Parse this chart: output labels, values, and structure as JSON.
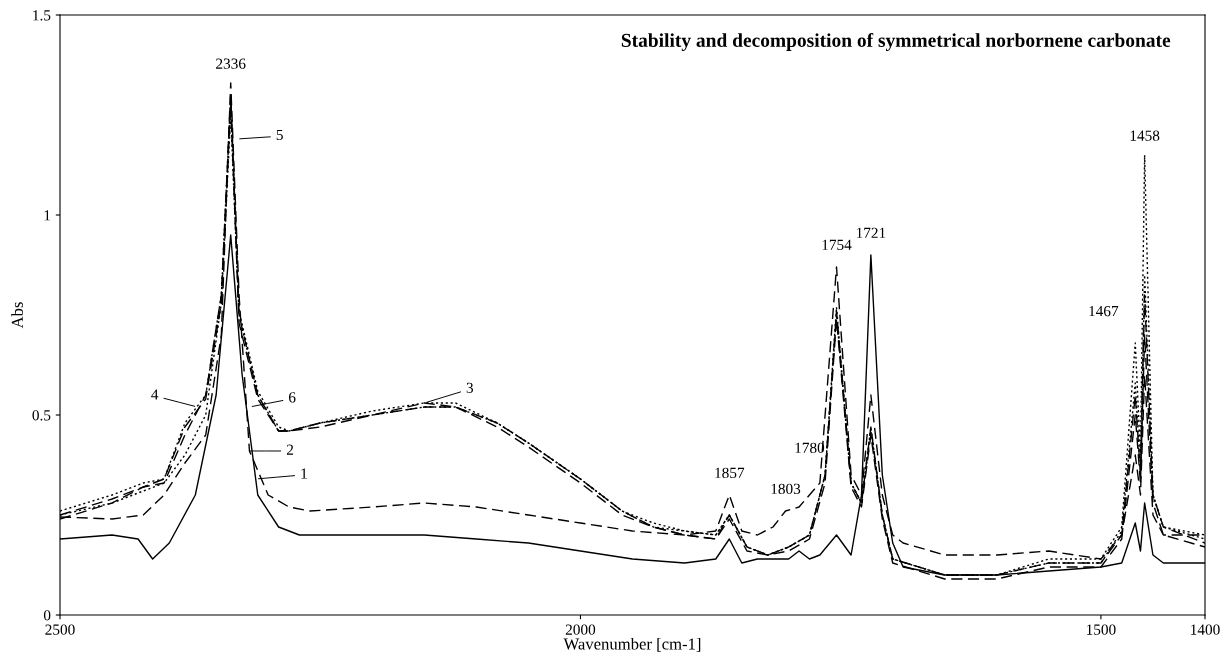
{
  "chart_data": {
    "type": "line",
    "title": "Stability and decomposition of symmetrical norbornene carbonate",
    "xlabel": "Wavenumber [cm-1]",
    "ylabel": "Abs",
    "xlim": [
      2500,
      1400
    ],
    "ylim": [
      0,
      1.5
    ],
    "xticks": [
      2500,
      2000,
      1500,
      1400
    ],
    "yticks": [
      0,
      0.5,
      1,
      1.5
    ],
    "grid": false,
    "legend": false,
    "marker": "none",
    "series": [
      {
        "color": "#000000",
        "line_style": "solid",
        "x": [
          2500,
          2450,
          2425,
          2411,
          2395,
          2370,
          2350,
          2336,
          2325,
          2310,
          2290,
          2270,
          2250,
          2200,
          2150,
          2100,
          2050,
          2000,
          1950,
          1900,
          1870,
          1857,
          1845,
          1830,
          1815,
          1800,
          1790,
          1780,
          1770,
          1754,
          1740,
          1730,
          1721,
          1710,
          1700,
          1690,
          1650,
          1600,
          1550,
          1500,
          1480,
          1467,
          1462,
          1458,
          1450,
          1440,
          1400
        ],
        "values": [
          0.19,
          0.2,
          0.19,
          0.14,
          0.18,
          0.3,
          0.55,
          0.95,
          0.6,
          0.3,
          0.22,
          0.2,
          0.2,
          0.2,
          0.2,
          0.19,
          0.18,
          0.16,
          0.14,
          0.13,
          0.14,
          0.19,
          0.13,
          0.14,
          0.14,
          0.14,
          0.16,
          0.14,
          0.15,
          0.2,
          0.15,
          0.3,
          0.9,
          0.35,
          0.18,
          0.12,
          0.1,
          0.1,
          0.11,
          0.12,
          0.13,
          0.23,
          0.16,
          0.28,
          0.15,
          0.13,
          0.13
        ]
      },
      {
        "color": "#000000",
        "line_style": "dashed",
        "x": [
          2500,
          2450,
          2420,
          2400,
          2380,
          2360,
          2345,
          2336,
          2328,
          2318,
          2300,
          2280,
          2260,
          2200,
          2150,
          2100,
          2050,
          2000,
          1950,
          1900,
          1870,
          1857,
          1845,
          1830,
          1815,
          1803,
          1790,
          1780,
          1770,
          1754,
          1740,
          1730,
          1721,
          1710,
          1700,
          1690,
          1650,
          1600,
          1550,
          1500,
          1480,
          1467,
          1462,
          1458,
          1450,
          1440,
          1400
        ],
        "values": [
          0.245,
          0.24,
          0.25,
          0.3,
          0.38,
          0.45,
          0.7,
          1.33,
          0.8,
          0.41,
          0.3,
          0.27,
          0.26,
          0.27,
          0.28,
          0.27,
          0.25,
          0.23,
          0.21,
          0.2,
          0.21,
          0.3,
          0.21,
          0.2,
          0.22,
          0.26,
          0.27,
          0.3,
          0.33,
          0.87,
          0.35,
          0.3,
          0.55,
          0.3,
          0.2,
          0.18,
          0.15,
          0.15,
          0.16,
          0.14,
          0.2,
          0.4,
          0.3,
          0.6,
          0.25,
          0.2,
          0.2
        ]
      },
      {
        "color": "#000000",
        "line_style": "dashed",
        "x": [
          2500,
          2450,
          2420,
          2400,
          2380,
          2360,
          2345,
          2336,
          2328,
          2310,
          2290,
          2280,
          2250,
          2200,
          2150,
          2120,
          2080,
          2050,
          2000,
          1960,
          1930,
          1900,
          1870,
          1857,
          1840,
          1820,
          1800,
          1780,
          1765,
          1754,
          1740,
          1730,
          1721,
          1710,
          1700,
          1650,
          1600,
          1550,
          1500,
          1480,
          1467,
          1462,
          1458,
          1450,
          1440,
          1400
        ],
        "values": [
          0.25,
          0.29,
          0.32,
          0.33,
          0.45,
          0.55,
          0.8,
          1.3,
          0.75,
          0.55,
          0.46,
          0.46,
          0.48,
          0.5,
          0.53,
          0.52,
          0.48,
          0.43,
          0.34,
          0.26,
          0.22,
          0.2,
          0.19,
          0.25,
          0.17,
          0.15,
          0.17,
          0.2,
          0.35,
          0.76,
          0.33,
          0.28,
          0.47,
          0.25,
          0.14,
          0.1,
          0.1,
          0.13,
          0.13,
          0.2,
          0.55,
          0.35,
          0.8,
          0.3,
          0.22,
          0.18
        ]
      },
      {
        "color": "#000000",
        "line_style": "dashed",
        "x": [
          2500,
          2450,
          2420,
          2400,
          2380,
          2360,
          2345,
          2336,
          2328,
          2310,
          2290,
          2280,
          2250,
          2200,
          2150,
          2120,
          2080,
          2050,
          2000,
          1960,
          1930,
          1900,
          1870,
          1857,
          1840,
          1820,
          1800,
          1780,
          1765,
          1754,
          1740,
          1730,
          1721,
          1710,
          1700,
          1650,
          1600,
          1550,
          1500,
          1480,
          1467,
          1462,
          1458,
          1450,
          1440,
          1400
        ],
        "values": [
          0.24,
          0.28,
          0.32,
          0.34,
          0.47,
          0.54,
          0.78,
          1.28,
          0.73,
          0.54,
          0.46,
          0.46,
          0.47,
          0.5,
          0.52,
          0.52,
          0.47,
          0.42,
          0.33,
          0.25,
          0.22,
          0.2,
          0.19,
          0.24,
          0.16,
          0.15,
          0.16,
          0.19,
          0.33,
          0.74,
          0.32,
          0.27,
          0.45,
          0.24,
          0.13,
          0.09,
          0.09,
          0.12,
          0.12,
          0.19,
          0.5,
          0.33,
          0.7,
          0.28,
          0.2,
          0.17
        ]
      },
      {
        "color": "#000000",
        "line_style": "dotted",
        "x": [
          2500,
          2450,
          2420,
          2400,
          2380,
          2360,
          2345,
          2336,
          2328,
          2310,
          2290,
          2280,
          2250,
          2200,
          2150,
          2120,
          2080,
          2050,
          2000,
          1960,
          1930,
          1900,
          1870,
          1857,
          1840,
          1820,
          1800,
          1780,
          1765,
          1754,
          1740,
          1730,
          1721,
          1710,
          1700,
          1650,
          1600,
          1550,
          1500,
          1480,
          1467,
          1462,
          1458,
          1450,
          1440,
          1400
        ],
        "values": [
          0.25,
          0.28,
          0.31,
          0.33,
          0.4,
          0.5,
          0.78,
          1.25,
          0.75,
          0.55,
          0.46,
          0.46,
          0.48,
          0.5,
          0.52,
          0.52,
          0.48,
          0.43,
          0.34,
          0.26,
          0.22,
          0.21,
          0.2,
          0.25,
          0.17,
          0.15,
          0.17,
          0.2,
          0.35,
          0.75,
          0.33,
          0.28,
          0.46,
          0.25,
          0.14,
          0.1,
          0.1,
          0.14,
          0.14,
          0.22,
          0.68,
          0.4,
          1.15,
          0.3,
          0.22,
          0.19
        ]
      },
      {
        "color": "#000000",
        "line_style": "dotted",
        "x": [
          2500,
          2450,
          2420,
          2400,
          2380,
          2360,
          2345,
          2336,
          2328,
          2310,
          2290,
          2280,
          2250,
          2200,
          2150,
          2120,
          2080,
          2050,
          2000,
          1960,
          1930,
          1900,
          1870,
          1857,
          1840,
          1820,
          1800,
          1780,
          1765,
          1754,
          1740,
          1730,
          1721,
          1710,
          1700,
          1650,
          1600,
          1550,
          1500,
          1480,
          1467,
          1462,
          1458,
          1450,
          1440,
          1400
        ],
        "values": [
          0.26,
          0.3,
          0.33,
          0.34,
          0.48,
          0.55,
          0.8,
          1.3,
          0.76,
          0.56,
          0.47,
          0.46,
          0.48,
          0.51,
          0.53,
          0.53,
          0.48,
          0.43,
          0.34,
          0.26,
          0.23,
          0.21,
          0.2,
          0.25,
          0.17,
          0.15,
          0.17,
          0.2,
          0.35,
          0.77,
          0.33,
          0.28,
          0.47,
          0.25,
          0.14,
          0.1,
          0.1,
          0.13,
          0.13,
          0.21,
          0.58,
          0.36,
          0.85,
          0.3,
          0.22,
          0.2
        ]
      }
    ],
    "annotations": [
      {
        "text": "2336",
        "x": 2336,
        "y": 1.33
      },
      {
        "text": "1857",
        "x": 1857,
        "y": 0.3
      },
      {
        "text": "1803",
        "x": 1803,
        "y": 0.26
      },
      {
        "text": "1780",
        "x": 1780,
        "y": 0.3
      },
      {
        "text": "1754",
        "x": 1754,
        "y": 0.87
      },
      {
        "text": "1721",
        "x": 1721,
        "y": 0.9
      },
      {
        "text": "1467",
        "x": 1467,
        "y": 0.68
      },
      {
        "text": "1458",
        "x": 1458,
        "y": 1.15
      },
      {
        "text": "5",
        "x": 2330,
        "y": 1.19
      },
      {
        "text": "4",
        "x": 2368,
        "y": 0.52
      },
      {
        "text": "6",
        "x": 2318,
        "y": 0.52
      },
      {
        "text": "3",
        "x": 2150,
        "y": 0.53
      },
      {
        "text": "2",
        "x": 2320,
        "y": 0.41
      },
      {
        "text": "1",
        "x": 2312,
        "y": 0.34
      }
    ]
  }
}
